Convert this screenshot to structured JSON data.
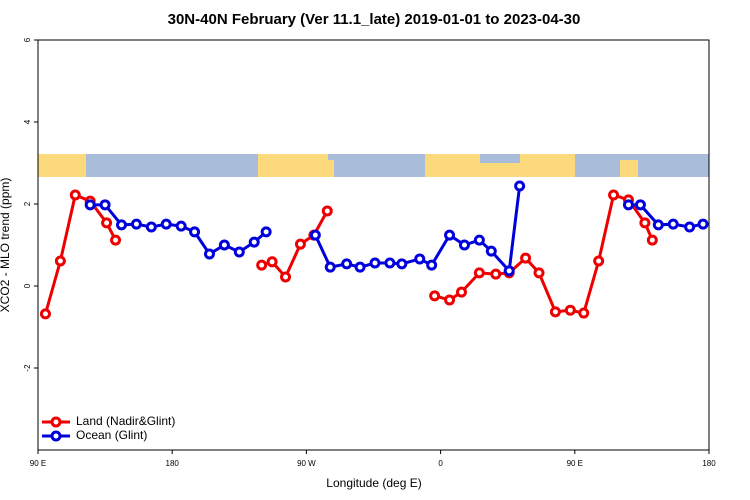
{
  "chart_data": {
    "type": "line",
    "title": "30N-40N February (Ver 11.1_late)   2019-01-01 to 2023-04-30",
    "x_label": "Longitude (deg E)",
    "y_label": "XCO2 - MLO trend (ppm)",
    "xlim": [
      90,
      540
    ],
    "xticks": [
      {
        "value": 90,
        "label": "90 E"
      },
      {
        "value": 180,
        "label": "180"
      },
      {
        "value": 270,
        "label": "90 W"
      },
      {
        "value": 360,
        "label": "0"
      },
      {
        "value": 450,
        "label": "90 E"
      },
      {
        "value": 540,
        "label": "180"
      }
    ],
    "ylim": [
      -4,
      6
    ],
    "yticks": [
      -2,
      0,
      2,
      4,
      6
    ],
    "legend": "bottom-left",
    "series": [
      {
        "name": "Land (Nadir&Glint)",
        "color": "#ee0000",
        "x": [
          95,
          105,
          115,
          125,
          136,
          142,
          null,
          240,
          247,
          256,
          266,
          275,
          284,
          null,
          356,
          366,
          374,
          386,
          397,
          406,
          417,
          426,
          437,
          447,
          456,
          466,
          476,
          486,
          497,
          502
        ],
        "values": [
          -0.68,
          0.61,
          2.22,
          2.07,
          1.54,
          1.12,
          null,
          0.51,
          0.59,
          0.22,
          1.02,
          1.24,
          1.83,
          null,
          -0.24,
          -0.34,
          -0.15,
          0.32,
          0.29,
          0.32,
          0.68,
          0.32,
          -0.63,
          -0.59,
          -0.66,
          0.61,
          2.22,
          2.1,
          1.54,
          1.12
        ]
      },
      {
        "name": "Ocean (Glint)",
        "color": "#0000dd",
        "x": [
          125,
          135,
          146,
          156,
          166,
          176,
          186,
          195,
          205,
          215,
          225,
          235,
          243,
          null,
          276,
          286,
          297,
          306,
          316,
          326,
          334,
          346,
          354,
          366,
          376,
          386,
          394,
          406,
          413,
          null,
          486,
          494,
          506,
          516,
          527,
          536
        ],
        "values": [
          1.98,
          1.98,
          1.49,
          1.51,
          1.44,
          1.51,
          1.46,
          1.32,
          0.78,
          1.0,
          0.83,
          1.07,
          1.32,
          null,
          1.24,
          0.46,
          0.54,
          0.46,
          0.56,
          0.56,
          0.54,
          0.66,
          0.51,
          1.24,
          1.0,
          1.12,
          0.85,
          0.37,
          2.44,
          null,
          1.98,
          1.98,
          1.49,
          1.51,
          1.44,
          1.51
        ]
      }
    ]
  }
}
